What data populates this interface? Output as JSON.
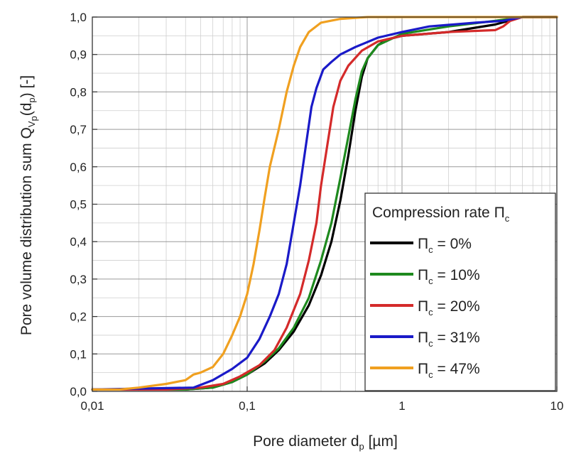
{
  "chart_data": {
    "type": "line",
    "x_scale": "log",
    "xlim": [
      0.01,
      10
    ],
    "ylim": [
      0.0,
      1.0
    ],
    "grid": true,
    "x_major_ticks": [
      {
        "value": 0.01,
        "label": "0,01"
      },
      {
        "value": 0.1,
        "label": "0,1"
      },
      {
        "value": 1,
        "label": "1"
      },
      {
        "value": 10,
        "label": "10"
      }
    ],
    "y_ticks": [
      {
        "value": 0.0,
        "label": "0,0"
      },
      {
        "value": 0.1,
        "label": "0,1"
      },
      {
        "value": 0.2,
        "label": "0,2"
      },
      {
        "value": 0.3,
        "label": "0,3"
      },
      {
        "value": 0.4,
        "label": "0,4"
      },
      {
        "value": 0.5,
        "label": "0,5"
      },
      {
        "value": 0.6,
        "label": "0,6"
      },
      {
        "value": 0.7,
        "label": "0,7"
      },
      {
        "value": 0.8,
        "label": "0,8"
      },
      {
        "value": 0.9,
        "label": "0,9"
      },
      {
        "value": 1.0,
        "label": "1,0"
      }
    ],
    "xlabel": {
      "main": "Pore diameter d",
      "sub": "p",
      "unit": " [µm]"
    },
    "ylabel": {
      "main": "Pore volume distribution sum Q",
      "sub1": "V",
      "sub2": "p",
      "mid": "(d",
      "sub3": "p",
      "end": ") [-]"
    },
    "legend": {
      "placement": "bottom-right",
      "title": {
        "main": "Compression rate Π",
        "sub": "c"
      }
    },
    "series": [
      {
        "name": "Π_c = 0%",
        "label_main": "Π",
        "label_sub": "c",
        "label_rest": " = 0%",
        "color": "#000000",
        "points": [
          [
            0.01,
            0.005
          ],
          [
            0.04,
            0.005
          ],
          [
            0.06,
            0.01
          ],
          [
            0.08,
            0.025
          ],
          [
            0.1,
            0.045
          ],
          [
            0.13,
            0.075
          ],
          [
            0.16,
            0.11
          ],
          [
            0.2,
            0.16
          ],
          [
            0.25,
            0.23
          ],
          [
            0.3,
            0.31
          ],
          [
            0.35,
            0.4
          ],
          [
            0.4,
            0.51
          ],
          [
            0.45,
            0.63
          ],
          [
            0.5,
            0.75
          ],
          [
            0.55,
            0.84
          ],
          [
            0.6,
            0.89
          ],
          [
            0.7,
            0.925
          ],
          [
            0.8,
            0.94
          ],
          [
            1.0,
            0.95
          ],
          [
            2.0,
            0.96
          ],
          [
            4.0,
            0.98
          ],
          [
            6.0,
            1.0
          ],
          [
            10,
            1.0
          ]
        ]
      },
      {
        "name": "Π_c = 10%",
        "label_main": "Π",
        "label_sub": "c",
        "label_rest": " = 10%",
        "color": "#1e8a1e",
        "points": [
          [
            0.01,
            0.005
          ],
          [
            0.04,
            0.005
          ],
          [
            0.06,
            0.01
          ],
          [
            0.08,
            0.025
          ],
          [
            0.1,
            0.045
          ],
          [
            0.13,
            0.08
          ],
          [
            0.16,
            0.115
          ],
          [
            0.2,
            0.17
          ],
          [
            0.25,
            0.25
          ],
          [
            0.3,
            0.35
          ],
          [
            0.35,
            0.45
          ],
          [
            0.4,
            0.57
          ],
          [
            0.45,
            0.68
          ],
          [
            0.5,
            0.78
          ],
          [
            0.55,
            0.855
          ],
          [
            0.6,
            0.89
          ],
          [
            0.7,
            0.925
          ],
          [
            1.0,
            0.955
          ],
          [
            2.0,
            0.975
          ],
          [
            4.0,
            0.99
          ],
          [
            6.0,
            1.0
          ],
          [
            10,
            1.0
          ]
        ]
      },
      {
        "name": "Π_c = 20%",
        "label_main": "Π",
        "label_sub": "c",
        "label_rest": " = 20%",
        "color": "#d42a2a",
        "points": [
          [
            0.01,
            0.005
          ],
          [
            0.03,
            0.005
          ],
          [
            0.05,
            0.01
          ],
          [
            0.07,
            0.02
          ],
          [
            0.09,
            0.04
          ],
          [
            0.12,
            0.07
          ],
          [
            0.15,
            0.11
          ],
          [
            0.18,
            0.17
          ],
          [
            0.22,
            0.26
          ],
          [
            0.25,
            0.35
          ],
          [
            0.28,
            0.45
          ],
          [
            0.3,
            0.55
          ],
          [
            0.33,
            0.66
          ],
          [
            0.36,
            0.76
          ],
          [
            0.4,
            0.83
          ],
          [
            0.45,
            0.87
          ],
          [
            0.55,
            0.91
          ],
          [
            0.7,
            0.935
          ],
          [
            1.0,
            0.95
          ],
          [
            2.0,
            0.96
          ],
          [
            4.0,
            0.965
          ],
          [
            4.5,
            0.975
          ],
          [
            5.0,
            0.99
          ],
          [
            6.0,
            1.0
          ],
          [
            10,
            1.0
          ]
        ]
      },
      {
        "name": "Π_c = 31%",
        "label_main": "Π",
        "label_sub": "c",
        "label_rest": " = 31%",
        "color": "#1a1ac8",
        "points": [
          [
            0.01,
            0.005
          ],
          [
            0.045,
            0.01
          ],
          [
            0.06,
            0.03
          ],
          [
            0.08,
            0.06
          ],
          [
            0.1,
            0.09
          ],
          [
            0.12,
            0.14
          ],
          [
            0.14,
            0.2
          ],
          [
            0.16,
            0.26
          ],
          [
            0.18,
            0.34
          ],
          [
            0.2,
            0.45
          ],
          [
            0.22,
            0.55
          ],
          [
            0.24,
            0.66
          ],
          [
            0.26,
            0.76
          ],
          [
            0.28,
            0.81
          ],
          [
            0.31,
            0.86
          ],
          [
            0.35,
            0.88
          ],
          [
            0.4,
            0.9
          ],
          [
            0.5,
            0.92
          ],
          [
            0.7,
            0.945
          ],
          [
            1.0,
            0.96
          ],
          [
            1.5,
            0.975
          ],
          [
            3.0,
            0.985
          ],
          [
            4.5,
            0.99
          ],
          [
            6.0,
            1.0
          ],
          [
            10,
            1.0
          ]
        ]
      },
      {
        "name": "Π_c = 47%",
        "label_main": "Π",
        "label_sub": "c",
        "label_rest": " = 47%",
        "color": "#f0a020",
        "points": [
          [
            0.01,
            0.005
          ],
          [
            0.015,
            0.005
          ],
          [
            0.02,
            0.01
          ],
          [
            0.03,
            0.02
          ],
          [
            0.04,
            0.03
          ],
          [
            0.045,
            0.045
          ],
          [
            0.05,
            0.05
          ],
          [
            0.06,
            0.065
          ],
          [
            0.07,
            0.1
          ],
          [
            0.08,
            0.15
          ],
          [
            0.09,
            0.2
          ],
          [
            0.1,
            0.26
          ],
          [
            0.11,
            0.34
          ],
          [
            0.12,
            0.43
          ],
          [
            0.13,
            0.52
          ],
          [
            0.14,
            0.6
          ],
          [
            0.16,
            0.7
          ],
          [
            0.18,
            0.8
          ],
          [
            0.2,
            0.87
          ],
          [
            0.22,
            0.92
          ],
          [
            0.25,
            0.96
          ],
          [
            0.3,
            0.985
          ],
          [
            0.4,
            0.995
          ],
          [
            0.6,
            1.0
          ],
          [
            10,
            1.0
          ]
        ]
      }
    ]
  }
}
